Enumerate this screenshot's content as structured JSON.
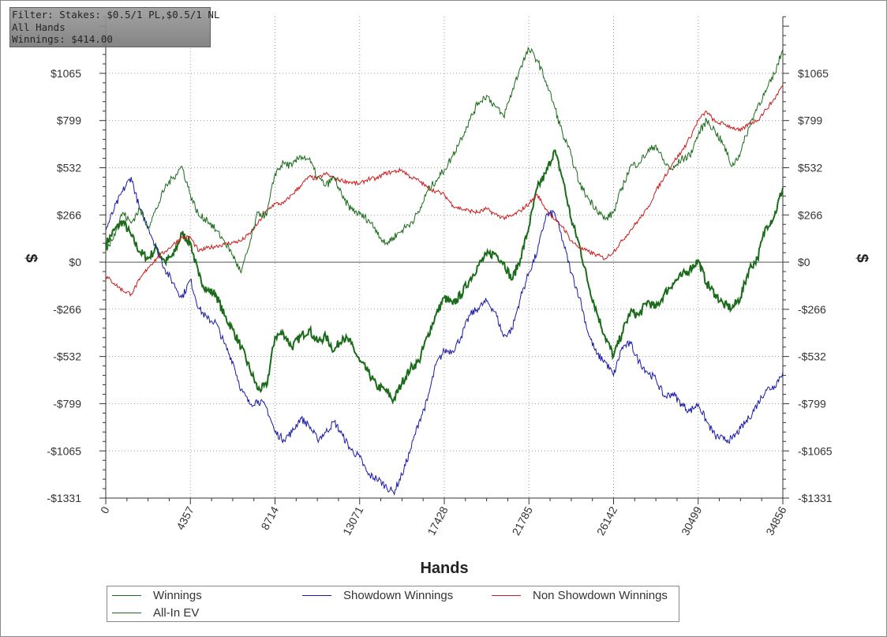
{
  "filter_box": {
    "line1": "Filter: Stakes: $0.5/1 PL,$0.5/1 NL",
    "line2": "All Hands",
    "line3": "Winnings: $414.00"
  },
  "colors": {
    "winnings": "#1a6b1a",
    "allin_ev": "#1a6b1a",
    "showdown": "#1a1aa8",
    "non_showdown": "#cc1a1a",
    "grid": "#9a9a9a",
    "axis": "#333333"
  },
  "chart_data": {
    "type": "line",
    "xlabel": "Hands",
    "ylabel": "$",
    "xlim": [
      0,
      34856
    ],
    "ylim": [
      -1331,
      1331
    ],
    "x_ticks": [
      0,
      4357,
      8714,
      13071,
      17428,
      21785,
      26142,
      30499,
      34856
    ],
    "x_tick_labels": [
      "0",
      "4357",
      "8714",
      "13071",
      "17428",
      "21785",
      "26142",
      "30499",
      "34856"
    ],
    "y_ticks": [
      -1331,
      -1065,
      -799,
      -532,
      -266,
      0,
      266,
      532,
      799,
      1065
    ],
    "y_tick_labels": [
      "-$1331",
      "-$1065",
      "-$799",
      "-$532",
      "-$266",
      "$0",
      "$266",
      "$532",
      "$799",
      "$1065"
    ],
    "grid": true,
    "legend_position": "bottom",
    "series": [
      {
        "name": "Winnings",
        "color": "#1a6b1a",
        "x": [
          0,
          436,
          872,
          1307,
          1743,
          2179,
          2614,
          3050,
          3486,
          3921,
          4357,
          4793,
          5229,
          5664,
          6100,
          6536,
          6971,
          7407,
          7843,
          8278,
          8714,
          9150,
          9585,
          10021,
          10457,
          10893,
          11328,
          11764,
          12200,
          12635,
          13071,
          13507,
          13942,
          14378,
          14814,
          15249,
          15685,
          16121,
          16557,
          16992,
          17428,
          17864,
          18299,
          18735,
          19171,
          19606,
          20042,
          20478,
          20913,
          21349,
          21785,
          22221,
          22656,
          23092,
          23528,
          23963,
          24399,
          24835,
          25270,
          25706,
          26142,
          26578,
          27013,
          27449,
          27885,
          28320,
          28756,
          29192,
          29627,
          30063,
          30499,
          30934,
          31370,
          31806,
          32242,
          32677,
          33113,
          33549,
          33984,
          34420,
          34856
        ],
        "y": [
          100,
          180,
          230,
          150,
          60,
          20,
          80,
          0,
          40,
          160,
          110,
          -80,
          -160,
          -180,
          -300,
          -380,
          -480,
          -600,
          -720,
          -700,
          -420,
          -400,
          -480,
          -420,
          -380,
          -450,
          -420,
          -500,
          -420,
          -460,
          -560,
          -620,
          -700,
          -720,
          -780,
          -680,
          -600,
          -560,
          -420,
          -300,
          -200,
          -240,
          -180,
          -100,
          -20,
          40,
          50,
          0,
          -100,
          20,
          200,
          420,
          500,
          630,
          470,
          240,
          90,
          -120,
          -280,
          -420,
          -530,
          -400,
          -280,
          -300,
          -220,
          -260,
          -180,
          -120,
          -80,
          -40,
          10,
          -120,
          -180,
          -240,
          -260,
          -200,
          -40,
          20,
          200,
          260,
          420
        ]
      },
      {
        "name": "Showdown Winnings",
        "color": "#1a1aa8",
        "x": [
          0,
          436,
          872,
          1307,
          1743,
          2179,
          2614,
          3050,
          3486,
          3921,
          4357,
          4793,
          5229,
          5664,
          6100,
          6536,
          6971,
          7407,
          7843,
          8278,
          8714,
          9150,
          9585,
          10021,
          10457,
          10893,
          11328,
          11764,
          12200,
          12635,
          13071,
          13507,
          13942,
          14378,
          14814,
          15249,
          15685,
          16121,
          16557,
          16992,
          17428,
          17864,
          18299,
          18735,
          19171,
          19606,
          20042,
          20478,
          20913,
          21349,
          21785,
          22221,
          22656,
          23092,
          23528,
          23963,
          24399,
          24835,
          25270,
          25706,
          26142,
          26578,
          27013,
          27449,
          27885,
          28320,
          28756,
          29192,
          29627,
          30063,
          30499,
          30934,
          31370,
          31806,
          32242,
          32677,
          33113,
          33549,
          33984,
          34420,
          34856
        ],
        "y": [
          180,
          300,
          400,
          480,
          300,
          200,
          80,
          -40,
          -120,
          -200,
          -100,
          -260,
          -320,
          -340,
          -460,
          -560,
          -720,
          -800,
          -780,
          -820,
          -960,
          -1000,
          -960,
          -880,
          -920,
          -1000,
          -960,
          -900,
          -980,
          -1060,
          -1100,
          -1200,
          -1220,
          -1260,
          -1300,
          -1200,
          -1060,
          -900,
          -780,
          -580,
          -500,
          -500,
          -420,
          -300,
          -260,
          -220,
          -280,
          -420,
          -380,
          -200,
          -60,
          60,
          260,
          280,
          120,
          -60,
          -200,
          -400,
          -520,
          -560,
          -640,
          -480,
          -460,
          -560,
          -620,
          -660,
          -760,
          -740,
          -800,
          -840,
          -800,
          -900,
          -980,
          -1000,
          -1000,
          -940,
          -880,
          -800,
          -720,
          -700,
          -620
        ]
      },
      {
        "name": "Non Showdown Winnings",
        "color": "#cc1a1a",
        "x": [
          0,
          436,
          872,
          1307,
          1743,
          2179,
          2614,
          3050,
          3486,
          3921,
          4357,
          4793,
          5229,
          5664,
          6100,
          6536,
          6971,
          7407,
          7843,
          8278,
          8714,
          9150,
          9585,
          10021,
          10457,
          10893,
          11328,
          11764,
          12200,
          12635,
          13071,
          13507,
          13942,
          14378,
          14814,
          15249,
          15685,
          16121,
          16557,
          16992,
          17428,
          17864,
          18299,
          18735,
          19171,
          19606,
          20042,
          20478,
          20913,
          21349,
          21785,
          22221,
          22656,
          23092,
          23528,
          23963,
          24399,
          24835,
          25270,
          25706,
          26142,
          26578,
          27013,
          27449,
          27885,
          28320,
          28756,
          29192,
          29627,
          30063,
          30499,
          30934,
          31370,
          31806,
          32242,
          32677,
          33113,
          33549,
          33984,
          34420,
          34856
        ],
        "y": [
          -80,
          -120,
          -160,
          -180,
          -100,
          -30,
          20,
          60,
          100,
          140,
          140,
          60,
          80,
          90,
          100,
          110,
          120,
          160,
          220,
          290,
          330,
          330,
          380,
          430,
          480,
          470,
          500,
          470,
          460,
          450,
          440,
          470,
          470,
          500,
          510,
          520,
          480,
          460,
          420,
          400,
          380,
          320,
          300,
          290,
          280,
          300,
          270,
          250,
          260,
          290,
          330,
          380,
          300,
          240,
          200,
          120,
          80,
          60,
          40,
          20,
          60,
          120,
          180,
          240,
          300,
          400,
          480,
          560,
          620,
          700,
          800,
          850,
          790,
          780,
          760,
          740,
          780,
          800,
          860,
          920,
          1000
        ]
      },
      {
        "name": "All-In EV",
        "color": "#1a6b1a",
        "x": [
          0,
          436,
          872,
          1307,
          1743,
          2179,
          2614,
          3050,
          3486,
          3921,
          4357,
          4793,
          5229,
          5664,
          6100,
          6536,
          6971,
          7407,
          7843,
          8278,
          8714,
          9150,
          9585,
          10021,
          10457,
          10893,
          11328,
          11764,
          12200,
          12635,
          13071,
          13507,
          13942,
          14378,
          14814,
          15249,
          15685,
          16121,
          16557,
          16992,
          17428,
          17864,
          18299,
          18735,
          19171,
          19606,
          20042,
          20478,
          20913,
          21349,
          21785,
          22221,
          22656,
          23092,
          23528,
          23963,
          24399,
          24835,
          25270,
          25706,
          26142,
          26578,
          27013,
          27449,
          27885,
          28320,
          28756,
          29192,
          29627,
          30063,
          30499,
          30934,
          31370,
          31806,
          32242,
          32677,
          33113,
          33549,
          33984,
          34420,
          34856
        ],
        "y": [
          60,
          160,
          280,
          220,
          300,
          200,
          300,
          420,
          480,
          540,
          380,
          260,
          240,
          180,
          120,
          40,
          -60,
          100,
          280,
          260,
          500,
          560,
          540,
          600,
          580,
          480,
          430,
          480,
          360,
          300,
          270,
          240,
          180,
          100,
          140,
          180,
          220,
          280,
          400,
          460,
          520,
          600,
          700,
          800,
          900,
          940,
          880,
          820,
          960,
          1100,
          1200,
          1140,
          1020,
          880,
          720,
          600,
          440,
          360,
          300,
          240,
          280,
          420,
          540,
          560,
          620,
          660,
          560,
          520,
          580,
          600,
          720,
          800,
          740,
          660,
          540,
          620,
          760,
          880,
          960,
          1060,
          1200
        ]
      }
    ]
  }
}
